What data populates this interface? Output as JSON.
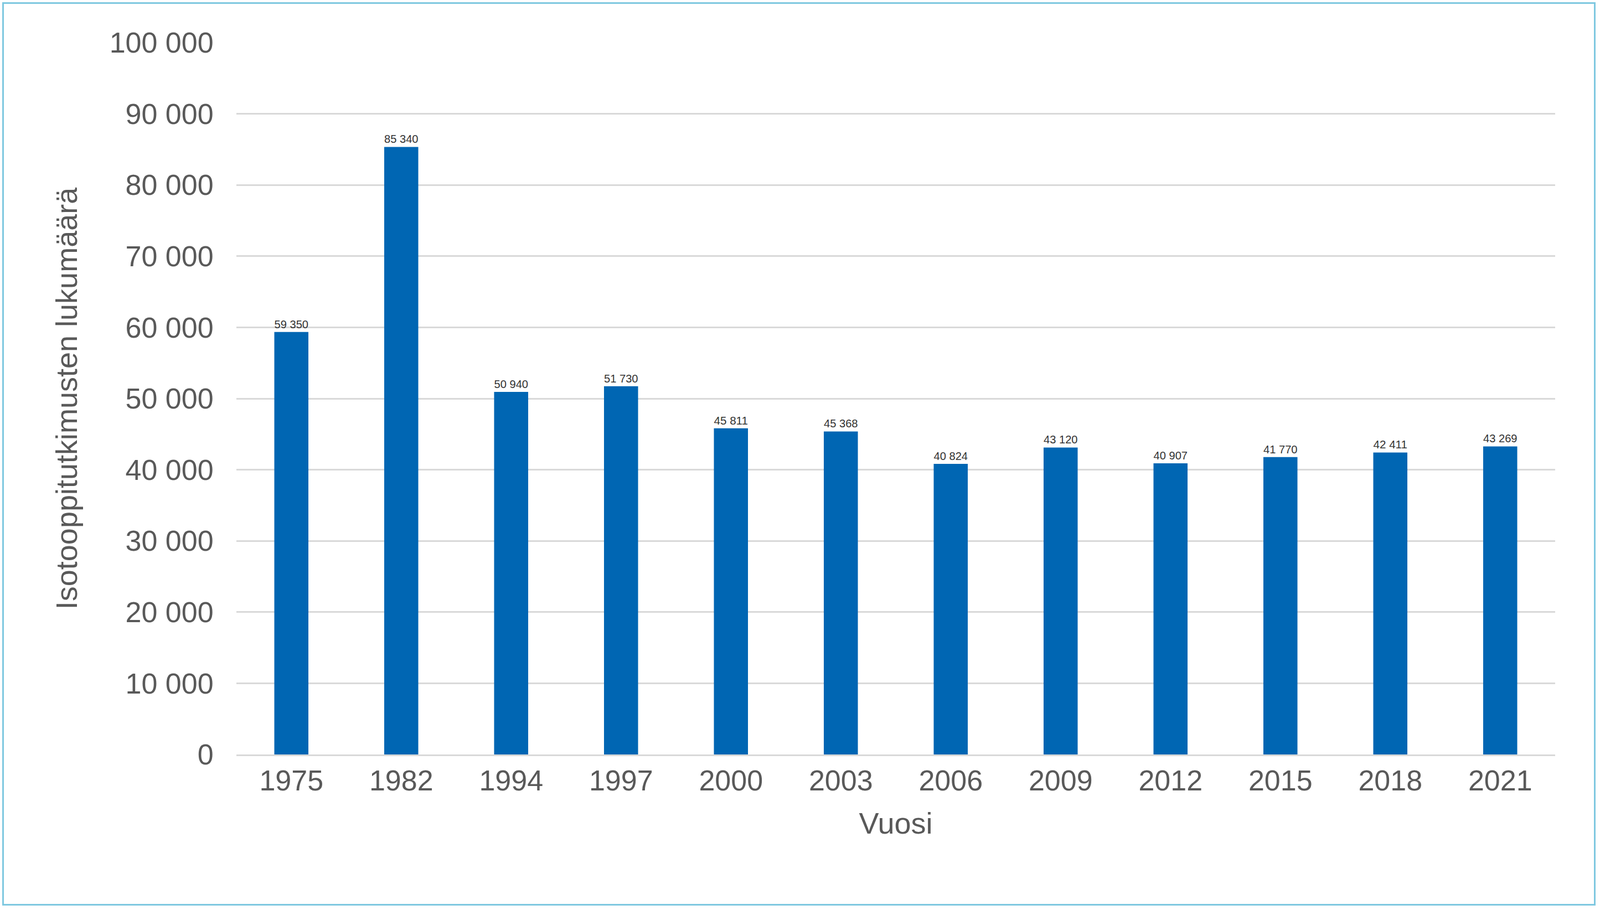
{
  "chart_data": {
    "type": "bar",
    "x_label": "Vuosi",
    "y_label": "Isotooppitutkimusten lukumäärä",
    "categories": [
      "1975",
      "1982",
      "1994",
      "1997",
      "2000",
      "2003",
      "2006",
      "2009",
      "2012",
      "2015",
      "2018",
      "2021"
    ],
    "values": [
      59350,
      85340,
      50940,
      51730,
      45811,
      45368,
      40824,
      43120,
      40907,
      41770,
      42411,
      43269
    ],
    "value_labels": [
      "59 350",
      "85 340",
      "50 940",
      "51 730",
      "45 811",
      "45 368",
      "40 824",
      "43 120",
      "40 907",
      "41 770",
      "42 411",
      "43 269"
    ],
    "color": "#0066b3",
    "ylim": [
      0,
      100000
    ],
    "yticks": [
      0,
      {
        "value": 10000,
        "label": "10 000"
      },
      {
        "value": 20000,
        "label": "20 000"
      },
      {
        "value": 30000,
        "label": "30 000"
      },
      {
        "value": 40000,
        "label": "40 000"
      },
      {
        "value": 50000,
        "label": "50 000"
      },
      {
        "value": 60000,
        "label": "60 000"
      },
      {
        "value": 70000,
        "label": "70 000"
      },
      {
        "value": 80000,
        "label": "80 000"
      },
      {
        "value": 90000,
        "label": "90 000"
      },
      {
        "value": 100000,
        "label": "100 000"
      }
    ],
    "grid": true,
    "data_labels": true
  }
}
